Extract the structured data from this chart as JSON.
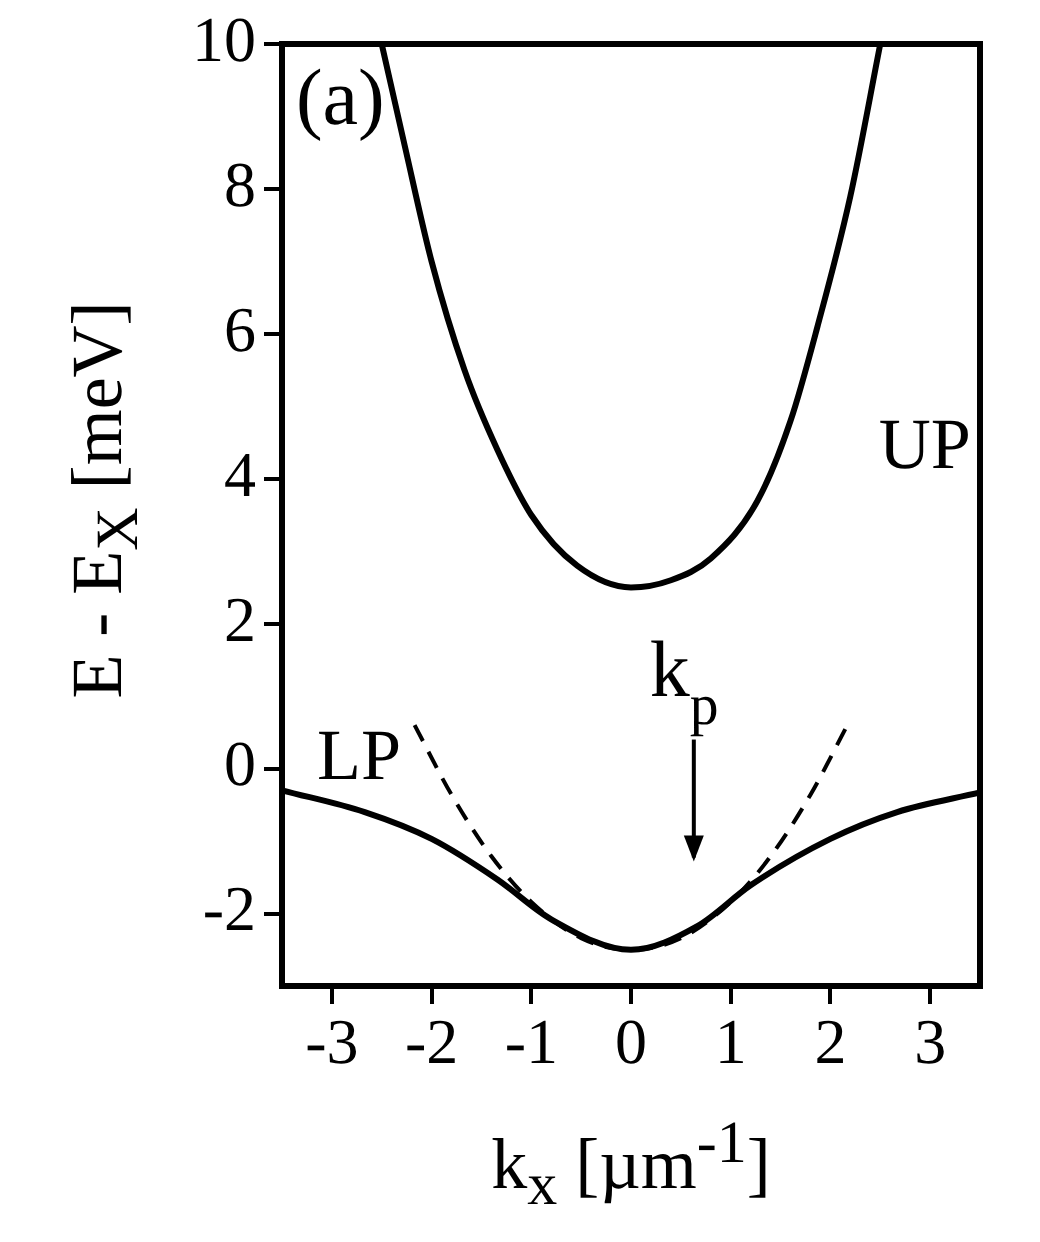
{
  "chart_data": {
    "type": "line",
    "xlabel": "k$_{x}$  [µm$^{-1}$]",
    "ylabel": "E - E$_{X}$  [meV]",
    "xlim": [
      -3.5,
      3.5
    ],
    "xticks": [
      -3,
      -2,
      -1,
      0,
      1,
      2,
      3
    ],
    "ylim": [
      -3,
      10
    ],
    "yticks": [
      -2,
      0,
      2,
      4,
      6,
      8,
      10
    ],
    "grid": false,
    "series": [
      {
        "name": "UP",
        "color": "#000000",
        "line_style": "solid",
        "x": [
          -2.5,
          -2.27,
          -2.0,
          -1.67,
          -1.34,
          -1.0,
          -0.54,
          0,
          0.4,
          0.8,
          1.27,
          1.6,
          1.87,
          2.2,
          2.5
        ],
        "values": [
          10,
          8.6,
          7.0,
          5.5,
          4.4,
          3.5,
          2.8,
          2.5,
          2.6,
          2.9,
          3.7,
          4.8,
          6.1,
          7.9,
          10
        ]
      },
      {
        "name": "LP",
        "color": "#000000",
        "line_style": "solid",
        "x": [
          -3.5,
          -2.67,
          -2.0,
          -1.34,
          -0.8,
          0,
          0.67,
          1.2,
          2.0,
          2.67,
          3.5
        ],
        "values": [
          -0.3,
          -0.6,
          -0.97,
          -1.53,
          -2.08,
          -2.5,
          -2.17,
          -1.61,
          -0.97,
          -0.6,
          -0.33
        ]
      },
      {
        "color": "#000000",
        "line_style": "dashed",
        "x": [
          -2.17,
          -1.8,
          -1.4,
          -1.0,
          -0.5,
          0,
          0.5,
          1.0,
          1.4,
          1.8,
          2.17
        ],
        "values": [
          0.6,
          -0.36,
          -1.21,
          -1.84,
          -2.34,
          -2.5,
          -2.34,
          -1.84,
          -1.21,
          -0.36,
          0.6
        ]
      }
    ],
    "annotations": [
      "(a)",
      "k$_{p}$"
    ]
  }
}
